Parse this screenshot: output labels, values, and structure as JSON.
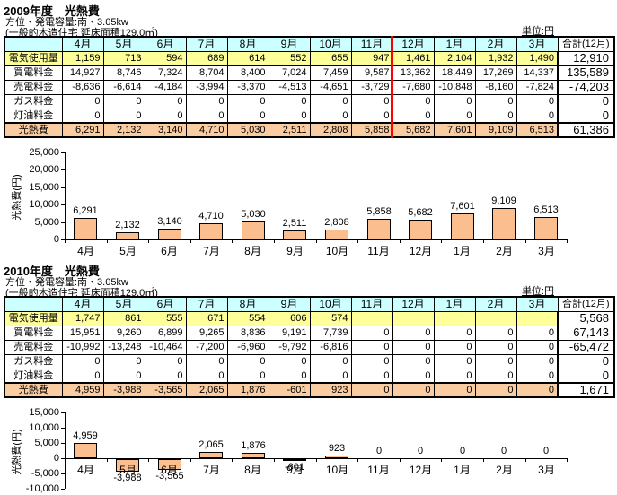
{
  "unit_label": "単位:円",
  "colors": {
    "table_header_bg": "#CCFFFF",
    "usage_row_bg": "#FFFF99",
    "total_row_bg": "#FACCA2",
    "bar_fill": "#FBBE8E",
    "divider_red": "#FF0000"
  },
  "sections": [
    {
      "title": "2009年度　光熱費",
      "subtitle": "方位・発電容量:南・3.05kw",
      "note": "(一般的木造住宅 延床面積129.0㎡)",
      "table": {
        "corner_label": "",
        "month_columns": [
          "4月",
          "5月",
          "6月",
          "7月",
          "8月",
          "9月",
          "10月",
          "11月",
          "12月",
          "1月",
          "2月",
          "3月"
        ],
        "total_column": "合計(12月)",
        "red_divider_after_month": "11月",
        "rows": [
          {
            "label": "電気使用量",
            "style": "yellow",
            "values": [
              "1,159",
              "713",
              "594",
              "689",
              "614",
              "552",
              "655",
              "947",
              "1,461",
              "2,104",
              "1,932",
              "1,490"
            ],
            "total": "12,910"
          },
          {
            "label": "買電料金",
            "style": "plain",
            "values": [
              "14,927",
              "8,746",
              "7,324",
              "8,704",
              "8,400",
              "7,024",
              "7,459",
              "9,587",
              "13,362",
              "18,449",
              "17,269",
              "14,337"
            ],
            "total": "135,589"
          },
          {
            "label": "売電料金",
            "style": "plain",
            "values": [
              "-8,636",
              "-6,614",
              "-4,184",
              "-3,994",
              "-3,370",
              "-4,513",
              "-4,651",
              "-3,729",
              "-7,680",
              "-10,848",
              "-8,160",
              "-7,824"
            ],
            "total": "-74,203"
          },
          {
            "label": "ガス料金",
            "style": "plain",
            "values": [
              "0",
              "0",
              "0",
              "0",
              "0",
              "0",
              "0",
              "0",
              "0",
              "0",
              "0",
              "0"
            ],
            "total": "0"
          },
          {
            "label": "灯油料金",
            "style": "plain",
            "values": [
              "0",
              "0",
              "0",
              "0",
              "0",
              "0",
              "0",
              "0",
              "0",
              "0",
              "0",
              "0"
            ],
            "total": "0"
          },
          {
            "label": "光熱費",
            "style": "orange",
            "values": [
              "6,291",
              "2,132",
              "3,140",
              "4,710",
              "5,030",
              "2,511",
              "2,808",
              "5,858",
              "5,682",
              "7,601",
              "9,109",
              "6,513"
            ],
            "total": "61,386"
          }
        ]
      }
    },
    {
      "title": "2010年度　光熱費",
      "subtitle": "方位・発電容量:南・3.05kw",
      "note": "(一般的木造住宅 延床面積129.0㎡)",
      "table": {
        "corner_label": "",
        "month_columns": [
          "4月",
          "5月",
          "6月",
          "7月",
          "8月",
          "9月",
          "10月",
          "11月",
          "12月",
          "1月",
          "2月",
          "3月"
        ],
        "total_column": "合計(12月)",
        "red_divider_after_month": null,
        "rows": [
          {
            "label": "電気使用量",
            "style": "yellow",
            "values": [
              "1,747",
              "861",
              "555",
              "671",
              "554",
              "606",
              "574",
              "",
              "",
              "",
              "",
              ""
            ],
            "total": "5,568"
          },
          {
            "label": "買電料金",
            "style": "plain",
            "values": [
              "15,951",
              "9,260",
              "6,899",
              "9,265",
              "8,836",
              "9,191",
              "7,739",
              "0",
              "0",
              "0",
              "0",
              "0"
            ],
            "total": "67,143"
          },
          {
            "label": "売電料金",
            "style": "plain",
            "values": [
              "-10,992",
              "-13,248",
              "-10,464",
              "-7,200",
              "-6,960",
              "-9,792",
              "-6,816",
              "0",
              "0",
              "0",
              "0",
              "0"
            ],
            "total": "-65,472"
          },
          {
            "label": "ガス料金",
            "style": "plain",
            "values": [
              "0",
              "0",
              "0",
              "0",
              "0",
              "0",
              "0",
              "0",
              "0",
              "0",
              "0",
              "0"
            ],
            "total": "0"
          },
          {
            "label": "灯油料金",
            "style": "plain",
            "values": [
              "0",
              "0",
              "0",
              "0",
              "0",
              "0",
              "0",
              "0",
              "0",
              "0",
              "0",
              "0"
            ],
            "total": "0"
          },
          {
            "label": "光熱費",
            "style": "orange",
            "values": [
              "4,959",
              "-3,988",
              "-3,565",
              "2,065",
              "1,876",
              "-601",
              "923",
              "0",
              "0",
              "0",
              "0",
              "0"
            ],
            "total": "1,671"
          }
        ]
      }
    }
  ],
  "chart_data": [
    {
      "type": "bar",
      "title": "",
      "xlabel": "",
      "ylabel": "光熱費(円)",
      "categories": [
        "4月",
        "5月",
        "6月",
        "7月",
        "8月",
        "9月",
        "10月",
        "11月",
        "12月",
        "1月",
        "2月",
        "3月"
      ],
      "values": [
        6291,
        2132,
        3140,
        4710,
        5030,
        2511,
        2808,
        5858,
        5682,
        7601,
        9109,
        6513
      ],
      "value_labels": [
        "6,291",
        "2,132",
        "3,140",
        "4,710",
        "5,030",
        "2,511",
        "2,808",
        "5,858",
        "5,682",
        "7,601",
        "9,109",
        "6,513"
      ],
      "ylim": [
        0,
        25000
      ],
      "yticks": [
        {
          "label": "25,000",
          "value": 25000
        },
        {
          "label": "20,000",
          "value": 20000
        },
        {
          "label": "15,000",
          "value": 15000
        },
        {
          "label": "10,000",
          "value": 10000
        },
        {
          "label": "5,000",
          "value": 5000
        },
        {
          "label": "0",
          "value": 0
        }
      ],
      "grid": false,
      "legend": false
    },
    {
      "type": "bar",
      "title": "",
      "xlabel": "",
      "ylabel": "光熱費(円)",
      "categories": [
        "4月",
        "5月",
        "6月",
        "7月",
        "8月",
        "9月",
        "10月",
        "11月",
        "12月",
        "1月",
        "2月",
        "3月"
      ],
      "values": [
        4959,
        -3988,
        -3565,
        2065,
        1876,
        -601,
        923,
        0,
        0,
        0,
        0,
        0
      ],
      "value_labels": [
        "4,959",
        "-3,988",
        "-3,565",
        "2,065",
        "1,876",
        "-601",
        "923",
        "0",
        "0",
        "0",
        "0",
        "0"
      ],
      "ylim": [
        -10000,
        15000
      ],
      "yticks": [
        {
          "label": "15,000",
          "value": 15000
        },
        {
          "label": "10,000",
          "value": 10000
        },
        {
          "label": "5,000",
          "value": 5000
        },
        {
          "label": "0",
          "value": 0
        },
        {
          "label": "-5,000",
          "value": -5000
        },
        {
          "label": "-10,000",
          "value": -10000
        }
      ],
      "grid": false,
      "legend": false
    }
  ]
}
